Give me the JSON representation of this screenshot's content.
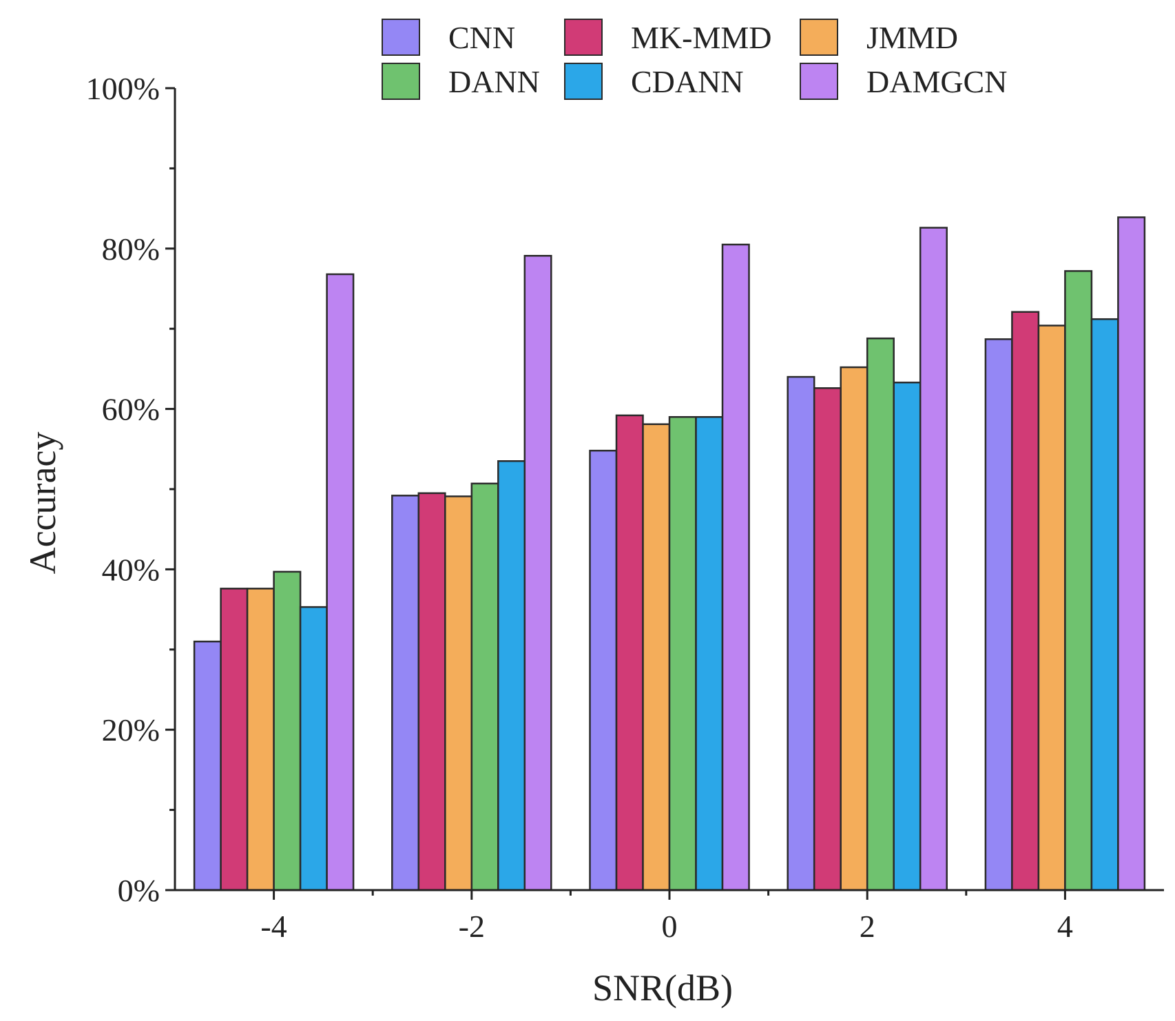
{
  "chart_data": {
    "type": "bar",
    "title": "",
    "xlabel": "SNR(dB)",
    "ylabel": "Accuracy",
    "categories": [
      "-4",
      "-2",
      "0",
      "2",
      "4"
    ],
    "ylim": [
      0,
      100
    ],
    "yticks": [
      0,
      20,
      40,
      60,
      80,
      100
    ],
    "ytick_labels": [
      "0%",
      "20%",
      "40%",
      "60%",
      "80%",
      "100%"
    ],
    "grid": false,
    "legend_position": "top",
    "series": [
      {
        "name": "CNN",
        "color": "#9487f5",
        "values": [
          31.0,
          49.2,
          54.8,
          64.0,
          68.7
        ]
      },
      {
        "name": "MK-MMD",
        "color": "#d13b76",
        "values": [
          37.6,
          49.5,
          59.2,
          62.6,
          72.1
        ]
      },
      {
        "name": "JMMD",
        "color": "#f4ad5a",
        "values": [
          37.6,
          49.1,
          58.1,
          65.2,
          70.4
        ]
      },
      {
        "name": "DANN",
        "color": "#6fc26f",
        "values": [
          39.7,
          50.7,
          59.0,
          68.8,
          77.2
        ]
      },
      {
        "name": "CDANN",
        "color": "#2ba7e8",
        "values": [
          35.3,
          53.5,
          59.0,
          63.3,
          71.2
        ]
      },
      {
        "name": "DAMGCN",
        "color": "#bd84f2",
        "values": [
          76.8,
          79.1,
          80.5,
          82.6,
          83.9
        ]
      }
    ]
  }
}
